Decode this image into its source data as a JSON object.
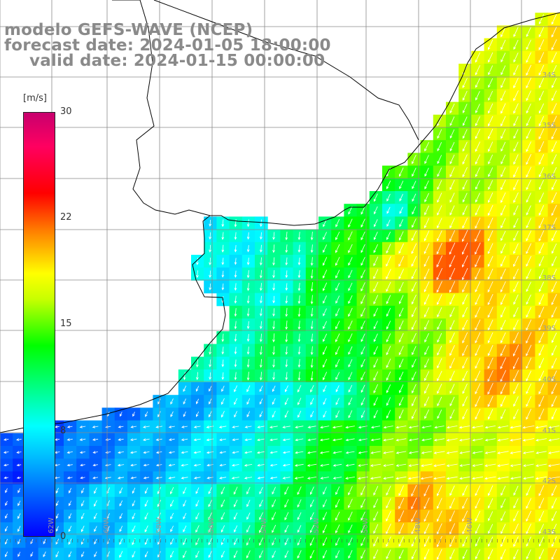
{
  "title": {
    "line1": "modelo GEFS-WAVE (NCEP)",
    "line2": "forecast date: 2024-01-05 18:00:00",
    "line3": "valid date: 2024-01-15 00:00:00"
  },
  "colorbar": {
    "unit": "[m/s]",
    "ticks": [
      "30",
      "22",
      "15",
      "8",
      "0"
    ],
    "min": 0,
    "max": 30,
    "colors": [
      "#0000ff",
      "#00bfff",
      "#00ffff",
      "#00ff00",
      "#c8ff00",
      "#ffff00",
      "#ff8000",
      "#ff0000",
      "#c8006e"
    ]
  },
  "lat_labels": [
    "34S",
    "35S",
    "36S",
    "37S",
    "38S",
    "39S",
    "40S",
    "41S",
    "42S",
    "43S"
  ],
  "lon_labels": [
    "62W",
    "60W",
    "58W",
    "56W",
    "54W",
    "52W",
    "50W",
    "48W",
    "46W"
  ],
  "colors": {
    "land": "#ffffff",
    "coast": "#000000",
    "grid": "#888888",
    "arrow": "#ffffff",
    "title": "#8a8a8a"
  }
}
